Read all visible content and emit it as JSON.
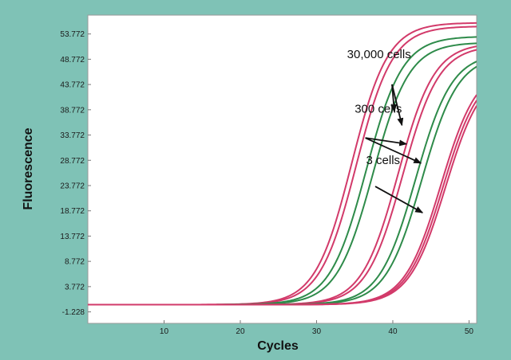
{
  "chart_data": {
    "type": "line",
    "title": "",
    "xlabel": "Cycles",
    "ylabel": "Fluorescence",
    "xlim": [
      0,
      51
    ],
    "ylim": [
      -3.5,
      57.5
    ],
    "x_ticks": [
      10,
      20,
      30,
      40,
      50
    ],
    "y_ticks": [
      -1.228,
      3.772,
      8.772,
      13.772,
      18.772,
      23.772,
      28.772,
      33.772,
      38.772,
      43.772,
      48.772,
      53.772
    ],
    "y_tick_labels": [
      "-1.228",
      "3.772",
      "8.772",
      "13.772",
      "18.772",
      "23.772",
      "28.772",
      "33.772",
      "38.772",
      "43.772",
      "48.772",
      "53.772"
    ],
    "grid": false,
    "legend": "none",
    "baseline": 0.2,
    "series": [
      {
        "color": "#d23a6a",
        "midpoint": 34.6,
        "plateau": 56.0,
        "slope": 0.42
      },
      {
        "color": "#d23a6a",
        "midpoint": 35.2,
        "plateau": 55.3,
        "slope": 0.42
      },
      {
        "color": "#2e8b4a",
        "midpoint": 36.5,
        "plateau": 53.3,
        "slope": 0.42
      },
      {
        "color": "#2e8b4a",
        "midpoint": 37.4,
        "plateau": 52.1,
        "slope": 0.42
      },
      {
        "color": "#d23a6a",
        "midpoint": 40.7,
        "plateau": 52.0,
        "slope": 0.42
      },
      {
        "color": "#d23a6a",
        "midpoint": 41.3,
        "plateau": 51.5,
        "slope": 0.42
      },
      {
        "color": "#2e8b4a",
        "midpoint": 43.0,
        "plateau": 50.0,
        "slope": 0.42
      },
      {
        "color": "#2e8b4a",
        "midpoint": 43.8,
        "plateau": 49.6,
        "slope": 0.42
      },
      {
        "color": "#d23a6a",
        "midpoint": 46.3,
        "plateau": 47.5,
        "slope": 0.42
      },
      {
        "color": "#d23a6a",
        "midpoint": 46.6,
        "plateau": 47.0,
        "slope": 0.42
      },
      {
        "color": "#d23a6a",
        "midpoint": 46.9,
        "plateau": 46.6,
        "slope": 0.42
      }
    ],
    "annotations": [
      {
        "text": "30,000 cells",
        "text_pos": [
          34,
          49.0
        ],
        "arrow_tails": [
          [
            39.9,
            43.8
          ],
          [
            39.9,
            43.8
          ]
        ],
        "arrow_heads": [
          [
            40.2,
            38.4
          ],
          [
            41.2,
            35.7
          ]
        ]
      },
      {
        "text": "300 cells",
        "text_pos": [
          35,
          38.2
        ],
        "arrow_tails": [
          [
            36.4,
            33.2
          ],
          [
            36.4,
            33.2
          ]
        ],
        "arrow_heads": [
          [
            41.8,
            32.0
          ],
          [
            43.7,
            28.2
          ]
        ]
      },
      {
        "text": "3 cells",
        "text_pos": [
          36.5,
          28.0
        ],
        "arrow_tails": [
          [
            37.7,
            23.6
          ]
        ],
        "arrow_heads": [
          [
            43.9,
            18.4
          ]
        ]
      }
    ]
  }
}
